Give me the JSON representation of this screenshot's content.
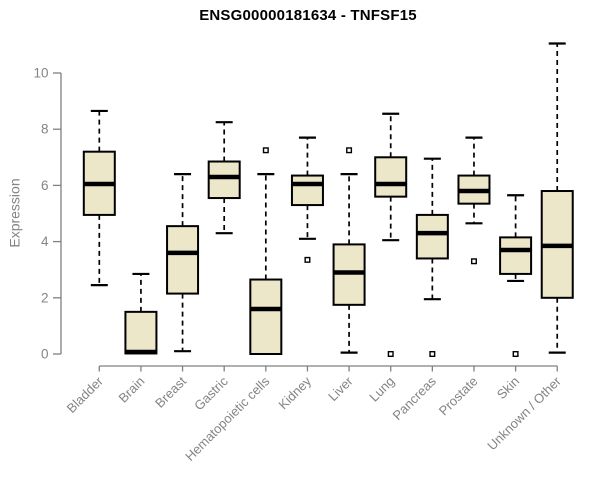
{
  "chart_data": {
    "type": "boxplot",
    "title": "ENSG00000181634 - TNFSF15",
    "ylabel": "Expression",
    "xlabel": "",
    "ylim": [
      0,
      11.2
    ],
    "yticks": [
      0,
      2,
      4,
      6,
      8,
      10
    ],
    "grid": false,
    "legend": "none",
    "x_tick_rotation": 45,
    "categories": [
      "Bladder",
      "Brain",
      "Breast",
      "Gastric",
      "Hematopoietic cells",
      "Kidney",
      "Liver",
      "Lung",
      "Pancreas",
      "Prostate",
      "Skin",
      "Unknown / Other"
    ],
    "boxes": [
      {
        "category": "Bladder",
        "whisker_low": 2.45,
        "q1": 4.95,
        "median": 6.05,
        "q3": 7.2,
        "whisker_high": 8.65,
        "outliers": []
      },
      {
        "category": "Brain",
        "whisker_low": 0.02,
        "q1": 0.02,
        "median": 0.07,
        "q3": 1.5,
        "whisker_high": 2.85,
        "outliers": []
      },
      {
        "category": "Breast",
        "whisker_low": 0.1,
        "q1": 2.15,
        "median": 3.6,
        "q3": 4.55,
        "whisker_high": 6.4,
        "outliers": []
      },
      {
        "category": "Gastric",
        "whisker_low": 4.3,
        "q1": 5.55,
        "median": 6.3,
        "q3": 6.85,
        "whisker_high": 8.25,
        "outliers": []
      },
      {
        "category": "Hematopoietic cells",
        "whisker_low": 0.0,
        "q1": 0.0,
        "median": 1.6,
        "q3": 2.65,
        "whisker_high": 6.4,
        "outliers": [
          7.25
        ]
      },
      {
        "category": "Kidney",
        "whisker_low": 4.1,
        "q1": 5.3,
        "median": 6.05,
        "q3": 6.35,
        "whisker_high": 7.7,
        "outliers": [
          3.35
        ]
      },
      {
        "category": "Liver",
        "whisker_low": 0.05,
        "q1": 1.75,
        "median": 2.9,
        "q3": 3.9,
        "whisker_high": 6.4,
        "outliers": [
          7.25
        ]
      },
      {
        "category": "Lung",
        "whisker_low": 4.05,
        "q1": 5.6,
        "median": 6.05,
        "q3": 7.0,
        "whisker_high": 8.55,
        "outliers": [
          0
        ]
      },
      {
        "category": "Pancreas",
        "whisker_low": 1.95,
        "q1": 3.4,
        "median": 4.3,
        "q3": 4.95,
        "whisker_high": 6.95,
        "outliers": [
          0
        ]
      },
      {
        "category": "Prostate",
        "whisker_low": 4.65,
        "q1": 5.35,
        "median": 5.8,
        "q3": 6.35,
        "whisker_high": 7.7,
        "outliers": [
          3.3
        ]
      },
      {
        "category": "Skin",
        "whisker_low": 2.6,
        "q1": 2.85,
        "median": 3.7,
        "q3": 4.15,
        "whisker_high": 5.65,
        "outliers": [
          0
        ]
      },
      {
        "category": "Unknown / Other",
        "whisker_low": 0.05,
        "q1": 2.0,
        "median": 3.85,
        "q3": 5.8,
        "whisker_high": 11.05,
        "outliers": []
      }
    ],
    "colors": {
      "box_fill": "#EDE7CA",
      "box_border": "#000000",
      "median": "#000000",
      "whisker": "#000000",
      "outlier": "#000000",
      "axis": "#808080",
      "tick_text": "#848484",
      "title_text": "#000000",
      "background": "#FFFFFF"
    }
  }
}
